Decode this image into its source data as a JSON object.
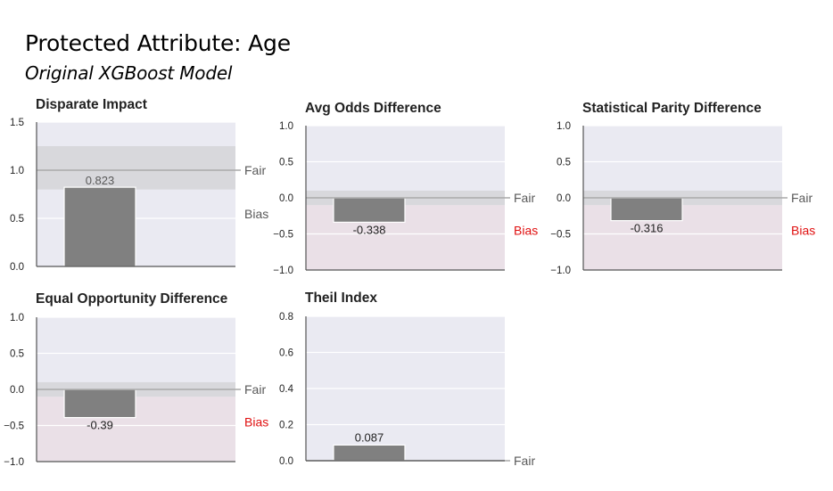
{
  "header": {
    "title": "Protected Attribute: Age",
    "subtitle": "Original XGBoost Model"
  },
  "colors": {
    "plot_bg": "#eaeaf2",
    "bias_bg": "#eae0e7",
    "fair_band": "#d8d8dc",
    "bar": "#808080",
    "fair_line": "#a9a9a9",
    "bias_text": "#e01010",
    "text": "#595959"
  },
  "chart_data": [
    {
      "type": "bar",
      "title": "Disparate Impact",
      "value": 0.823,
      "value_label": "0.823",
      "ylim": [
        0,
        1.5
      ],
      "yticks": [
        "0.0",
        "0.5",
        "1.0",
        "1.5"
      ],
      "ytick_values": [
        0,
        0.5,
        1,
        1.5
      ],
      "fair_value": 1.0,
      "fair_band": [
        0.8,
        1.25
      ],
      "fair_label": "Fair",
      "bias_label": "Bias",
      "bias_highlight": false,
      "grid": true
    },
    {
      "type": "bar",
      "title": "Avg Odds Difference",
      "value": -0.338,
      "value_label": "-0.338",
      "ylim": [
        -1,
        1
      ],
      "yticks": [
        "−1.0",
        "−0.5",
        "0.0",
        "0.5",
        "1.0"
      ],
      "ytick_values": [
        -1,
        -0.5,
        0,
        0.5,
        1
      ],
      "fair_value": 0,
      "fair_band": [
        -0.1,
        0.1
      ],
      "fair_label": "Fair",
      "bias_label": "Bias",
      "bias_highlight": true,
      "grid": true
    },
    {
      "type": "bar",
      "title": "Statistical Parity Difference",
      "value": -0.316,
      "value_label": "-0.316",
      "ylim": [
        -1,
        1
      ],
      "yticks": [
        "−1.0",
        "−0.5",
        "0.0",
        "0.5",
        "1.0"
      ],
      "ytick_values": [
        -1,
        -0.5,
        0,
        0.5,
        1
      ],
      "fair_value": 0,
      "fair_band": [
        -0.1,
        0.1
      ],
      "fair_label": "Fair",
      "bias_label": "Bias",
      "bias_highlight": true,
      "grid": true
    },
    {
      "type": "bar",
      "title": "Equal Opportunity Difference",
      "value": -0.39,
      "value_label": "-0.39",
      "ylim": [
        -1,
        1
      ],
      "yticks": [
        "−1.0",
        "−0.5",
        "0.0",
        "0.5",
        "1.0"
      ],
      "ytick_values": [
        -1,
        -0.5,
        0,
        0.5,
        1
      ],
      "fair_value": 0,
      "fair_band": [
        -0.1,
        0.1
      ],
      "fair_label": "Fair",
      "bias_label": "Bias",
      "bias_highlight": true,
      "grid": true
    },
    {
      "type": "bar",
      "title": "Theil Index",
      "value": 0.087,
      "value_label": "0.087",
      "ylim": [
        0,
        0.8
      ],
      "yticks": [
        "0.0",
        "0.2",
        "0.4",
        "0.6",
        "0.8"
      ],
      "ytick_values": [
        0,
        0.2,
        0.4,
        0.6,
        0.8
      ],
      "fair_value": 0,
      "fair_label": "Fair",
      "bias_highlight": false,
      "grid": true
    }
  ]
}
